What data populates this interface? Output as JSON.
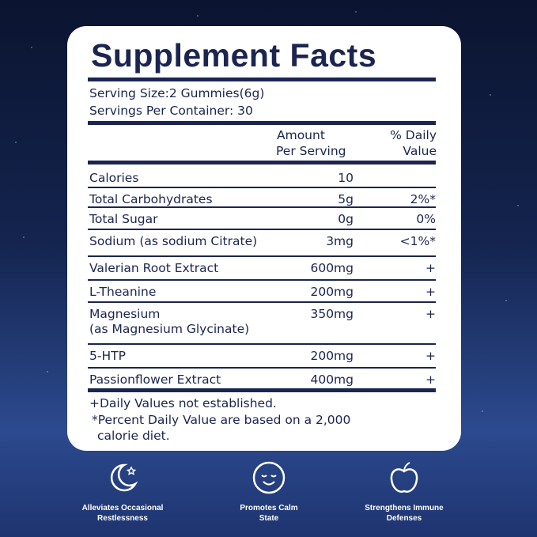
{
  "title": "Supplement Facts",
  "serving_size": "Serving Size:2 Gummies(6g)",
  "servings_per_container": "Servings Per Container: 30",
  "table": {
    "amount_header": [
      "Amount",
      "Per Serving"
    ],
    "dv_header": [
      "% Daily",
      "Value"
    ],
    "rows": [
      {
        "name": "Calories",
        "amount": "10"
      },
      {
        "name": "Total Carbohydrates",
        "amount": "5g",
        "dv": "2%*"
      },
      {
        "name": "Total Sugar",
        "amount": "0g",
        "dv": "0%"
      },
      {
        "name": "Sodium (as sodium Citrate)",
        "amount": "3mg",
        "dv": "<1%*"
      },
      {
        "name": "Valerian Root Extract",
        "amount": "600mg",
        "dv": "+"
      },
      {
        "name": "L-Theanine",
        "amount": "200mg",
        "dv": "+"
      },
      {
        "name": "Magnesium",
        "sub": "(as Magnesium Glycinate)",
        "amount": "350mg",
        "dv": "+"
      },
      {
        "name": "5-HTP",
        "amount": "200mg",
        "dv": "+"
      },
      {
        "name": "Passionflower Extract",
        "amount": "400mg",
        "dv": "+"
      }
    ]
  },
  "footnotes": [
    "+Daily Values not established.",
    "*Percent Daily Value are based on a 2,000",
    "calorie diet."
  ],
  "features": [
    {
      "lines": [
        "Alleviates Occasional",
        "Restlessness"
      ]
    },
    {
      "lines": [
        "Promotes Calm",
        "State"
      ]
    },
    {
      "lines": [
        "Strengthens Immune",
        "Defenses"
      ]
    }
  ]
}
